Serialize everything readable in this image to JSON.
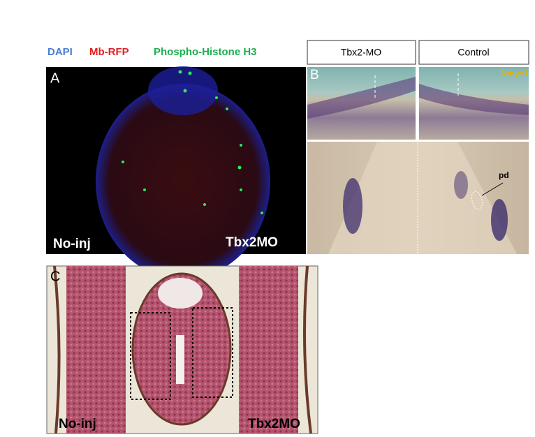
{
  "legend": {
    "dapi": "DAPI",
    "mb_rfp": "Mb-RFP",
    "ph3": "Phospho-Histone H3"
  },
  "panel_a": {
    "label": "A",
    "left": "No-inj",
    "right": "Tbx2MO"
  },
  "panel_b": {
    "label": "B",
    "headers": [
      "Tbx2-MO",
      "Control"
    ],
    "gene": "Nmyc1",
    "annotation": "pd"
  },
  "panel_c": {
    "label": "C",
    "left": "No-inj",
    "right": "Tbx2MO"
  }
}
